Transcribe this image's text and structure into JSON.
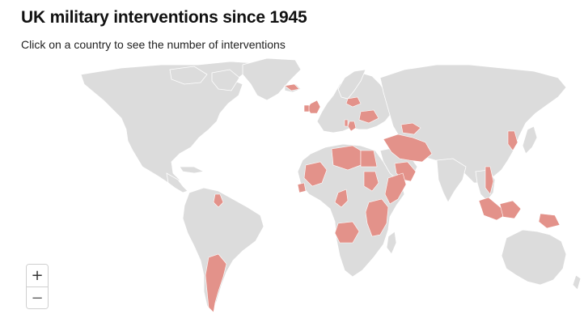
{
  "title": "UK military interventions since 1945",
  "subtitle": "Click on a country to see the number of interventions",
  "colors": {
    "land": "#dcdcdc",
    "intervention": "#e3928a",
    "background": "#ffffff"
  },
  "zoom": {
    "in_label": "+",
    "out_label": "−"
  },
  "intervention_countries": [
    "United Kingdom",
    "Ireland",
    "Poland",
    "Ukraine",
    "Greece",
    "Albania",
    "Bosnia and Herzegovina",
    "Turkey",
    "Cyprus",
    "Libya",
    "Egypt",
    "Iraq",
    "Iran",
    "Kuwait",
    "Syria",
    "Jordan",
    "Saudi Arabia",
    "Oman",
    "Yemen",
    "Somalia",
    "Sudan",
    "Ethiopia",
    "Kenya",
    "Uganda",
    "Tanzania",
    "Mali",
    "Sierra Leone",
    "Cameroon",
    "Zambia",
    "Afghanistan",
    "Vietnam",
    "North Korea",
    "South Korea",
    "Malaysia",
    "Indonesia",
    "Borneo",
    "Papua New Guinea",
    "Argentina",
    "Guyana",
    "Belize"
  ]
}
